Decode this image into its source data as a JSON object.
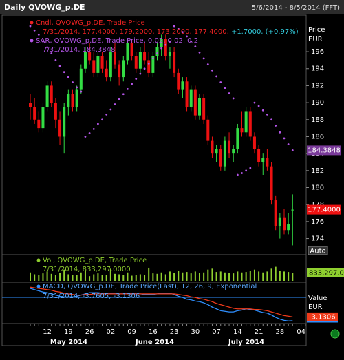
{
  "header": {
    "title": "Daily QVOWG_p.DE",
    "range": "5/6/2014 - 8/5/2014 (FFT)"
  },
  "chart_data": [
    {
      "type": "candlestick",
      "legend_title": "Cndl, QVOWG_p.DE, Trade Price",
      "legend_values": "7/31/2014, 177.4000, 179.2000, 173.2000, 177.4000,",
      "legend_change": "+1.7000, (+0.97%)",
      "y_axis_title": [
        "Price",
        "EUR"
      ],
      "auto_button": "Auto",
      "categories": [
        null,
        null,
        null,
        null,
        "12",
        null,
        null,
        null,
        null,
        "19",
        null,
        null,
        null,
        null,
        "26",
        null,
        null,
        null,
        null,
        "02",
        null,
        null,
        null,
        null,
        "09",
        null,
        null,
        null,
        null,
        "16",
        null,
        null,
        null,
        null,
        "23",
        null,
        null,
        null,
        null,
        "30",
        null,
        null,
        null,
        null,
        "07",
        null,
        null,
        null,
        null,
        "14",
        null,
        null,
        null,
        null,
        "21",
        null,
        null,
        null,
        null,
        "28",
        null,
        null,
        null,
        null,
        "04",
        null
      ],
      "months": [
        "May 2014",
        "June 2014",
        "July 2014"
      ],
      "up_color": "#33dd44",
      "down_color": "#ee1111",
      "open": [
        190,
        189.5,
        188,
        187,
        189.5,
        192,
        190,
        188,
        186,
        189.5,
        191,
        189.5,
        191.5,
        194,
        196,
        195,
        193.5,
        195.5,
        194,
        193,
        196,
        194.5,
        193,
        195,
        197,
        195.5,
        194,
        196,
        195,
        193.5,
        195.5,
        196.5,
        197.5,
        195.5,
        196,
        193.5,
        191.5,
        192.5,
        189.5,
        191.5,
        188.5,
        190.5,
        188,
        185.5,
        184,
        184.5,
        182.5,
        185.5,
        184,
        184.5,
        187,
        186.5,
        189,
        186,
        184.5,
        183,
        183.5,
        182.5,
        178.5,
        175.5,
        176.5,
        175,
        177.4,
        null,
        null,
        null
      ],
      "high": [
        191,
        190.5,
        189,
        190,
        192.5,
        192.5,
        190.5,
        189,
        190,
        191.5,
        191.5,
        192,
        194.5,
        196.5,
        197,
        196,
        196,
        196,
        195,
        196.5,
        197,
        195,
        195.5,
        197.5,
        197.5,
        196,
        196.5,
        197,
        196,
        196,
        197,
        198,
        198,
        196.5,
        196.5,
        194,
        193,
        193,
        192,
        192,
        191,
        191,
        188.5,
        186,
        185,
        185,
        186,
        186.5,
        185,
        187.5,
        189,
        189.5,
        189.5,
        186.5,
        185,
        184,
        184.5,
        183,
        179,
        177,
        177.5,
        177,
        179.2,
        null,
        null,
        null
      ],
      "low": [
        188,
        187.5,
        186.5,
        186.5,
        189,
        189.5,
        187,
        185,
        184,
        188.5,
        189,
        189,
        191,
        193.5,
        194.5,
        193,
        193,
        193.5,
        192.5,
        192.5,
        194,
        192,
        192.5,
        194.5,
        195,
        193.5,
        193.5,
        194.5,
        193,
        193,
        195,
        195.5,
        195,
        194,
        193,
        191,
        190.5,
        189,
        189,
        188,
        188,
        187.5,
        185,
        183.5,
        183,
        182,
        182,
        183.5,
        183,
        184,
        186,
        186,
        185.5,
        184,
        182.5,
        181.5,
        182,
        178,
        175,
        174,
        174.5,
        174.5,
        173.2,
        null,
        null,
        null
      ],
      "close": [
        189.5,
        188,
        187,
        189.5,
        192,
        190,
        188,
        186,
        189.5,
        191,
        189.5,
        191.5,
        194,
        196,
        195,
        193.5,
        195.5,
        194,
        193,
        196,
        194.5,
        193,
        195,
        197,
        195.5,
        194,
        196,
        195,
        193.5,
        195.5,
        196.5,
        197.5,
        195.5,
        196,
        193.5,
        191.5,
        192.5,
        189.5,
        191.5,
        188.5,
        190.5,
        188,
        185.5,
        184,
        184.5,
        182.5,
        185.5,
        184,
        184.5,
        187,
        186.5,
        189,
        186,
        184.5,
        183,
        183.5,
        182.5,
        178.5,
        175.5,
        176.5,
        175,
        175.7,
        177.4,
        null,
        null,
        null
      ],
      "last_label": "177.4000",
      "ylim": [
        172.1,
        200.3
      ],
      "yticks": [
        174,
        176,
        178,
        180,
        182,
        184,
        186,
        188,
        190,
        192,
        194,
        196
      ],
      "overlay": {
        "type": "sar",
        "name": "SAR, QVOWG_p.DE, Trade Price, 0.02, 0.02, 0.2",
        "legend_values": "7/31/2014, 184.3848",
        "color": "#b455e8",
        "values": [
          199,
          198.5,
          198,
          197.2,
          196.5,
          195.8,
          195,
          194.3,
          193.6,
          193,
          192.4,
          191.8,
          191.3,
          186,
          186.4,
          186.9,
          187.5,
          188,
          188.6,
          189.2,
          189.8,
          190.4,
          191,
          191.6,
          192.2,
          192.8,
          193.4,
          194,
          194.6,
          195.2,
          195.8,
          196.4,
          196.8,
          197.2,
          199,
          198.7,
          198.3,
          197.8,
          197.2,
          196.6,
          195.9,
          195.2,
          194.5,
          193.8,
          193.1,
          192.4,
          191.7,
          191.1,
          190.5,
          181.5,
          181.7,
          182,
          182.3,
          190,
          189.6,
          189.1,
          188.6,
          188,
          187.3,
          186.5,
          185.8,
          185.1,
          184.3848,
          null,
          null,
          null
        ],
        "last_label": "184.3848"
      }
    },
    {
      "type": "bar",
      "name": "Vol, QVOWG_p.DE, Trade Price",
      "legend_values": "7/31/2014, 833,297.0000",
      "color": "#8fcf2f",
      "values": [
        900000,
        700000,
        650000,
        800000,
        1000000,
        750000,
        600000,
        850000,
        1200000,
        700000,
        650000,
        600000,
        900000,
        1100000,
        500000,
        700000,
        800000,
        650000,
        600000,
        1300000,
        750000,
        700000,
        650000,
        900000,
        550000,
        600000,
        700000,
        650000,
        1400000,
        800000,
        750000,
        900000,
        700000,
        1000000,
        850000,
        1100000,
        900000,
        950000,
        800000,
        1000000,
        850000,
        900000,
        1200000,
        1300000,
        950000,
        1000000,
        900000,
        850000,
        800000,
        1000000,
        900000,
        950000,
        1100000,
        1200000,
        1000000,
        900000,
        1000000,
        1300000,
        1500000,
        1100000,
        1000000,
        950000,
        833297,
        null,
        null,
        null
      ],
      "last_label": "833,297.00",
      "ylim": [
        0,
        2500000
      ]
    },
    {
      "type": "line",
      "name": "MACD, QVOWG_p.DE, Trade Price(Last), 12, 26, 9, Exponential",
      "legend_values": "7/31/2014, -3.7605, -3.1306",
      "y_axis_title": [
        "Value",
        "EUR"
      ],
      "ylim": [
        -4,
        2.4
      ],
      "series": [
        {
          "color": "#2f8fff",
          "values": [
            1.6,
            1.4,
            1.2,
            1.0,
            0.9,
            0.7,
            0.5,
            0.3,
            0.2,
            0.2,
            0.2,
            0.3,
            0.5,
            0.7,
            0.9,
            0.9,
            0.9,
            0.8,
            0.7,
            0.8,
            0.8,
            0.7,
            0.7,
            0.8,
            0.8,
            0.7,
            0.7,
            0.6,
            0.6,
            0.6,
            0.7,
            0.8,
            0.8,
            0.8,
            0.6,
            0.3,
            0.1,
            -0.2,
            -0.3,
            -0.5,
            -0.6,
            -0.8,
            -1.1,
            -1.5,
            -1.8,
            -2.1,
            -2.2,
            -2.3,
            -2.3,
            -2.1,
            -2.0,
            -1.8,
            -1.9,
            -2.0,
            -2.2,
            -2.4,
            -2.5,
            -2.8,
            -3.2,
            -3.5,
            -3.7,
            -3.8,
            -3.7605,
            null,
            null,
            null
          ],
          "last_label": "-3.7605"
        },
        {
          "color": "#ee3a1a",
          "values": [
            1.8,
            1.7,
            1.6,
            1.5,
            1.4,
            1.3,
            1.1,
            1.0,
            0.8,
            0.7,
            0.6,
            0.5,
            0.5,
            0.6,
            0.6,
            0.7,
            0.7,
            0.7,
            0.7,
            0.7,
            0.7,
            0.7,
            0.7,
            0.7,
            0.7,
            0.7,
            0.7,
            0.7,
            0.7,
            0.7,
            0.7,
            0.7,
            0.7,
            0.7,
            0.7,
            0.6,
            0.5,
            0.4,
            0.2,
            0.1,
            -0.1,
            -0.2,
            -0.4,
            -0.6,
            -0.9,
            -1.1,
            -1.3,
            -1.5,
            -1.7,
            -1.8,
            -1.8,
            -1.8,
            -1.8,
            -1.9,
            -1.9,
            -2.0,
            -2.1,
            -2.3,
            -2.5,
            -2.7,
            -2.9,
            -3.0,
            -3.1306,
            null,
            null,
            null
          ],
          "last_label": "-3.1306"
        }
      ]
    }
  ]
}
